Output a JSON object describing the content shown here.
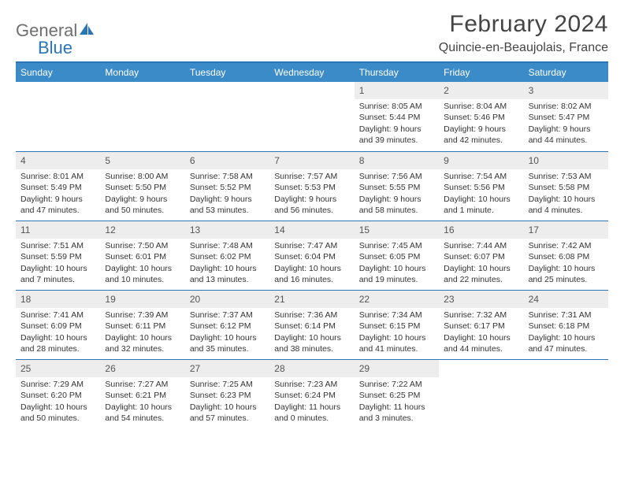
{
  "brand": {
    "general": "General",
    "blue": "Blue"
  },
  "title": "February 2024",
  "location": "Quincie-en-Beaujolais, France",
  "colors": {
    "accent": "#3b8bc9",
    "accent_border": "#2a74b8",
    "date_bg": "#ededed",
    "text": "#333333",
    "logo_gray": "#6f6f6f",
    "page_bg": "#ffffff"
  },
  "dayNames": [
    "Sunday",
    "Monday",
    "Tuesday",
    "Wednesday",
    "Thursday",
    "Friday",
    "Saturday"
  ],
  "firstDayOffset": 4,
  "days": [
    {
      "n": 1,
      "sr": "8:05 AM",
      "ss": "5:44 PM",
      "dl": "9 hours and 39 minutes."
    },
    {
      "n": 2,
      "sr": "8:04 AM",
      "ss": "5:46 PM",
      "dl": "9 hours and 42 minutes."
    },
    {
      "n": 3,
      "sr": "8:02 AM",
      "ss": "5:47 PM",
      "dl": "9 hours and 44 minutes."
    },
    {
      "n": 4,
      "sr": "8:01 AM",
      "ss": "5:49 PM",
      "dl": "9 hours and 47 minutes."
    },
    {
      "n": 5,
      "sr": "8:00 AM",
      "ss": "5:50 PM",
      "dl": "9 hours and 50 minutes."
    },
    {
      "n": 6,
      "sr": "7:58 AM",
      "ss": "5:52 PM",
      "dl": "9 hours and 53 minutes."
    },
    {
      "n": 7,
      "sr": "7:57 AM",
      "ss": "5:53 PM",
      "dl": "9 hours and 56 minutes."
    },
    {
      "n": 8,
      "sr": "7:56 AM",
      "ss": "5:55 PM",
      "dl": "9 hours and 58 minutes."
    },
    {
      "n": 9,
      "sr": "7:54 AM",
      "ss": "5:56 PM",
      "dl": "10 hours and 1 minute."
    },
    {
      "n": 10,
      "sr": "7:53 AM",
      "ss": "5:58 PM",
      "dl": "10 hours and 4 minutes."
    },
    {
      "n": 11,
      "sr": "7:51 AM",
      "ss": "5:59 PM",
      "dl": "10 hours and 7 minutes."
    },
    {
      "n": 12,
      "sr": "7:50 AM",
      "ss": "6:01 PM",
      "dl": "10 hours and 10 minutes."
    },
    {
      "n": 13,
      "sr": "7:48 AM",
      "ss": "6:02 PM",
      "dl": "10 hours and 13 minutes."
    },
    {
      "n": 14,
      "sr": "7:47 AM",
      "ss": "6:04 PM",
      "dl": "10 hours and 16 minutes."
    },
    {
      "n": 15,
      "sr": "7:45 AM",
      "ss": "6:05 PM",
      "dl": "10 hours and 19 minutes."
    },
    {
      "n": 16,
      "sr": "7:44 AM",
      "ss": "6:07 PM",
      "dl": "10 hours and 22 minutes."
    },
    {
      "n": 17,
      "sr": "7:42 AM",
      "ss": "6:08 PM",
      "dl": "10 hours and 25 minutes."
    },
    {
      "n": 18,
      "sr": "7:41 AM",
      "ss": "6:09 PM",
      "dl": "10 hours and 28 minutes."
    },
    {
      "n": 19,
      "sr": "7:39 AM",
      "ss": "6:11 PM",
      "dl": "10 hours and 32 minutes."
    },
    {
      "n": 20,
      "sr": "7:37 AM",
      "ss": "6:12 PM",
      "dl": "10 hours and 35 minutes."
    },
    {
      "n": 21,
      "sr": "7:36 AM",
      "ss": "6:14 PM",
      "dl": "10 hours and 38 minutes."
    },
    {
      "n": 22,
      "sr": "7:34 AM",
      "ss": "6:15 PM",
      "dl": "10 hours and 41 minutes."
    },
    {
      "n": 23,
      "sr": "7:32 AM",
      "ss": "6:17 PM",
      "dl": "10 hours and 44 minutes."
    },
    {
      "n": 24,
      "sr": "7:31 AM",
      "ss": "6:18 PM",
      "dl": "10 hours and 47 minutes."
    },
    {
      "n": 25,
      "sr": "7:29 AM",
      "ss": "6:20 PM",
      "dl": "10 hours and 50 minutes."
    },
    {
      "n": 26,
      "sr": "7:27 AM",
      "ss": "6:21 PM",
      "dl": "10 hours and 54 minutes."
    },
    {
      "n": 27,
      "sr": "7:25 AM",
      "ss": "6:23 PM",
      "dl": "10 hours and 57 minutes."
    },
    {
      "n": 28,
      "sr": "7:23 AM",
      "ss": "6:24 PM",
      "dl": "11 hours and 0 minutes."
    },
    {
      "n": 29,
      "sr": "7:22 AM",
      "ss": "6:25 PM",
      "dl": "11 hours and 3 minutes."
    }
  ],
  "labels": {
    "sunrise": "Sunrise:",
    "sunset": "Sunset:",
    "daylight": "Daylight:"
  }
}
